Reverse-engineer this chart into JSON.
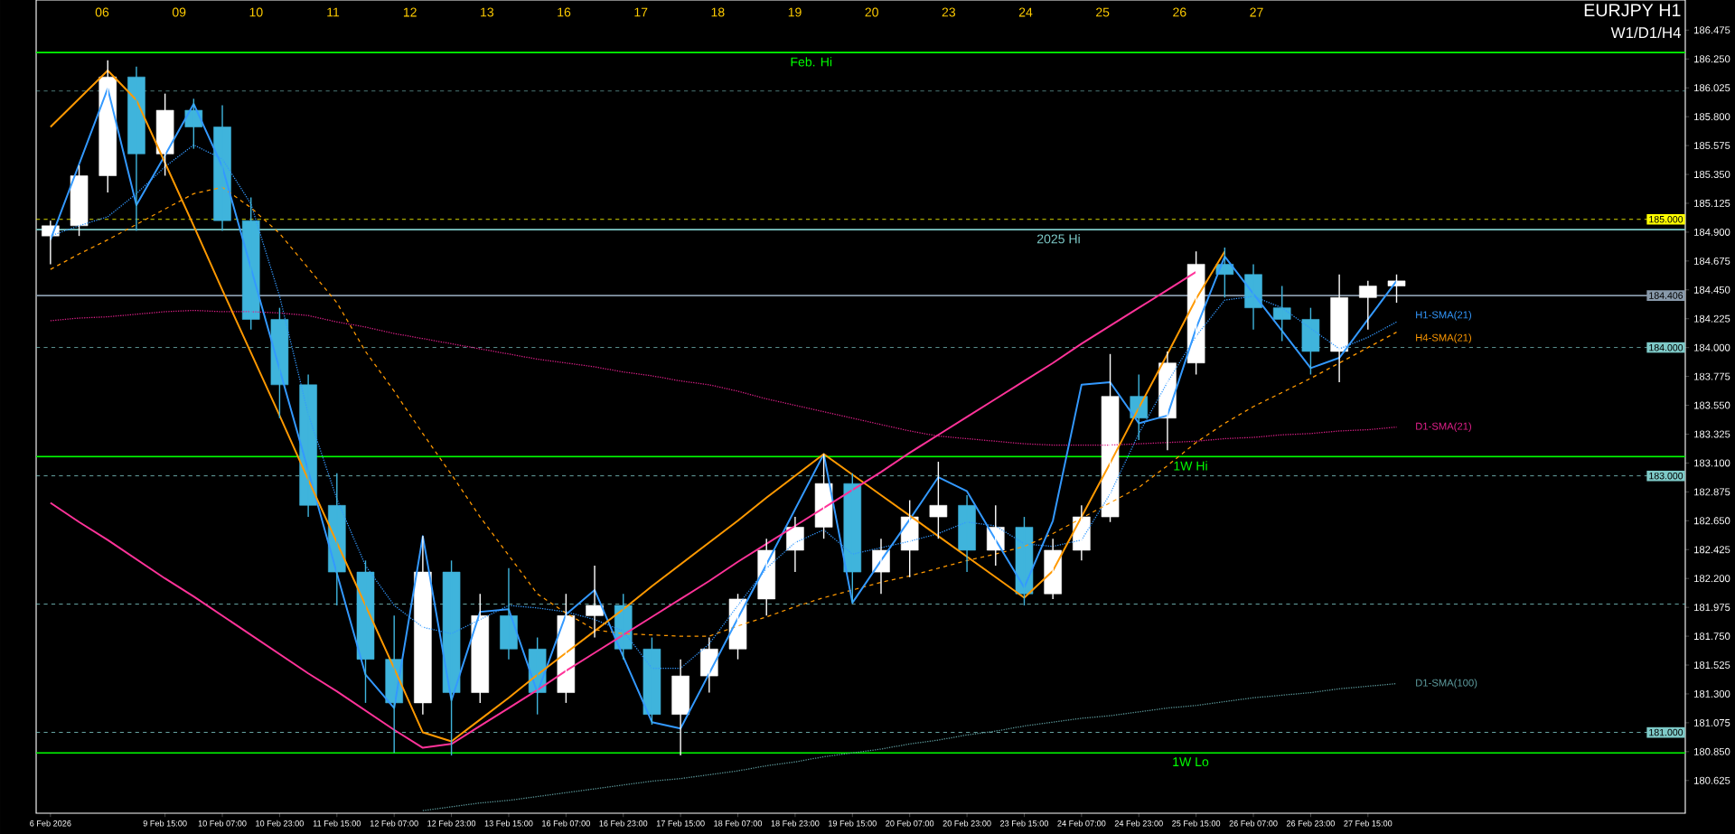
{
  "chart_data": {
    "type": "candlestick",
    "title": "EURJPY H1",
    "subtitle": "W1/D1/H4",
    "categories": [
      "6 Feb 2026",
      null,
      null,
      null,
      "9 Feb 15:00",
      null,
      "10 Feb 07:00",
      null,
      "10 Feb 23:00",
      null,
      "11 Feb 15:00",
      null,
      "12 Feb 07:00",
      null,
      "12 Feb 23:00",
      null,
      "13 Feb 15:00",
      null,
      "16 Feb 07:00",
      null,
      "16 Feb 23:00",
      null,
      "17 Feb 15:00",
      null,
      "18 Feb 07:00",
      null,
      "18 Feb 23:00",
      null,
      "19 Feb 15:00",
      null,
      "20 Feb 07:00",
      null,
      "20 Feb 23:00",
      null,
      "23 Feb 15:00",
      null,
      "24 Feb 07:00",
      null,
      "24 Feb 23:00",
      null,
      "25 Feb 15:00",
      null,
      "26 Feb 07:00",
      null,
      "26 Feb 23:00",
      null,
      "27 Feb 15:00",
      null
    ],
    "ohlc": [
      [
        184.87,
        184.99,
        184.65,
        184.95
      ],
      [
        184.95,
        185.42,
        184.87,
        185.34
      ],
      [
        185.34,
        186.24,
        185.21,
        186.11
      ],
      [
        186.11,
        186.19,
        184.91,
        185.51
      ],
      [
        185.51,
        185.98,
        185.34,
        185.85
      ],
      [
        185.85,
        185.94,
        185.55,
        185.72
      ],
      [
        185.72,
        185.89,
        184.91,
        184.99
      ],
      [
        184.99,
        185.17,
        184.14,
        184.22
      ],
      [
        184.22,
        184.31,
        183.45,
        183.71
      ],
      [
        183.71,
        183.79,
        182.68,
        182.77
      ],
      [
        182.77,
        183.02,
        181.99,
        182.25
      ],
      [
        182.25,
        182.34,
        181.23,
        181.57
      ],
      [
        181.57,
        181.91,
        180.84,
        181.23
      ],
      [
        181.23,
        182.53,
        181.14,
        182.25
      ],
      [
        182.25,
        182.34,
        180.82,
        181.31
      ],
      [
        181.31,
        182.08,
        181.23,
        181.91
      ],
      [
        181.91,
        182.28,
        181.57,
        181.65
      ],
      [
        181.65,
        181.74,
        181.14,
        181.31
      ],
      [
        181.31,
        182.08,
        181.23,
        181.91
      ],
      [
        181.91,
        182.3,
        181.74,
        181.99
      ],
      [
        181.99,
        182.08,
        181.57,
        181.65
      ],
      [
        181.65,
        181.74,
        181.06,
        181.14
      ],
      [
        181.14,
        181.57,
        180.82,
        181.44
      ],
      [
        181.44,
        181.74,
        181.31,
        181.65
      ],
      [
        181.65,
        182.08,
        181.57,
        182.04
      ],
      [
        182.04,
        182.51,
        181.91,
        182.42
      ],
      [
        182.42,
        182.68,
        182.25,
        182.6
      ],
      [
        182.6,
        183.17,
        182.51,
        182.94
      ],
      [
        182.94,
        183.02,
        182.01,
        182.25
      ],
      [
        182.25,
        182.51,
        182.08,
        182.42
      ],
      [
        182.42,
        182.81,
        182.21,
        182.68
      ],
      [
        182.68,
        183.11,
        182.51,
        182.77
      ],
      [
        182.77,
        182.85,
        182.25,
        182.42
      ],
      [
        182.42,
        182.77,
        182.3,
        182.6
      ],
      [
        182.6,
        182.68,
        181.99,
        182.08
      ],
      [
        182.08,
        182.51,
        182.04,
        182.42
      ],
      [
        182.42,
        182.77,
        182.34,
        182.68
      ],
      [
        182.68,
        183.95,
        182.64,
        183.62
      ],
      [
        183.62,
        183.79,
        183.28,
        183.45
      ],
      [
        183.45,
        183.97,
        183.2,
        183.88
      ],
      [
        183.88,
        184.75,
        183.79,
        184.65
      ],
      [
        184.65,
        184.78,
        184.39,
        184.57
      ],
      [
        184.57,
        184.65,
        184.14,
        184.31
      ],
      [
        184.31,
        184.48,
        184.05,
        184.22
      ],
      [
        184.22,
        184.31,
        183.79,
        183.97
      ],
      [
        183.97,
        184.57,
        183.73,
        184.39
      ],
      [
        184.39,
        184.52,
        184.14,
        184.48
      ],
      [
        184.48,
        184.57,
        184.35,
        184.52
      ]
    ],
    "series": [
      {
        "type": "line",
        "name": "H1-SMA(21)",
        "color": "#3399ff",
        "line_style": "dotted",
        "values": [
          184.87,
          184.95,
          185.02,
          185.2,
          185.41,
          185.58,
          185.47,
          185.12,
          184.4,
          183.48,
          182.82,
          182.3,
          181.99,
          181.82,
          181.77,
          181.88,
          181.99,
          181.97,
          181.94,
          181.88,
          181.79,
          181.5,
          181.5,
          181.69,
          181.99,
          182.28,
          182.48,
          182.58,
          182.39,
          182.44,
          182.49,
          182.55,
          182.64,
          182.61,
          182.47,
          182.45,
          182.5,
          182.86,
          183.33,
          183.73,
          184.09,
          184.37,
          184.4,
          184.31,
          184.15,
          183.99,
          184.08,
          184.2
        ]
      },
      {
        "type": "line",
        "name": "H4-SMA(21)",
        "color": "#ff9900",
        "line_style": "dashed",
        "values": [
          184.61,
          184.73,
          184.84,
          184.96,
          185.08,
          185.2,
          185.25,
          185.09,
          184.89,
          184.62,
          184.35,
          183.97,
          183.66,
          183.33,
          183.01,
          182.68,
          182.38,
          182.08,
          181.93,
          181.8,
          181.77,
          181.76,
          181.75,
          181.75,
          181.83,
          181.9,
          181.98,
          182.05,
          182.11,
          182.17,
          182.22,
          182.28,
          182.34,
          182.39,
          182.45,
          182.55,
          182.67,
          182.79,
          182.91,
          183.08,
          183.26,
          183.41,
          183.54,
          183.65,
          183.76,
          183.88,
          184.0,
          184.12
        ]
      },
      {
        "type": "line",
        "name": "D1-SMA(21)",
        "color": "#e0208a",
        "line_style": "dotted",
        "values": [
          184.21,
          184.23,
          184.24,
          184.26,
          184.28,
          184.29,
          184.28,
          184.28,
          184.27,
          184.25,
          184.2,
          184.16,
          184.11,
          184.07,
          184.03,
          183.99,
          183.95,
          183.91,
          183.88,
          183.85,
          183.81,
          183.78,
          183.74,
          183.71,
          183.66,
          183.6,
          183.55,
          183.5,
          183.45,
          183.4,
          183.35,
          183.31,
          183.29,
          183.27,
          183.25,
          183.24,
          183.24,
          183.24,
          183.25,
          183.26,
          183.27,
          183.29,
          183.3,
          183.32,
          183.33,
          183.35,
          183.36,
          183.38
        ]
      },
      {
        "type": "line",
        "name": "D1-SMA(100)",
        "color": "#5f9ea0",
        "line_style": "dotted",
        "values": [
          null,
          null,
          null,
          null,
          null,
          null,
          null,
          null,
          null,
          null,
          null,
          null,
          null,
          180.39,
          180.42,
          180.45,
          180.47,
          180.5,
          180.53,
          180.56,
          180.59,
          180.62,
          180.64,
          180.67,
          180.7,
          180.74,
          180.77,
          180.81,
          180.84,
          180.87,
          180.91,
          180.94,
          180.98,
          181.01,
          181.05,
          181.08,
          181.11,
          181.13,
          181.16,
          181.19,
          181.21,
          181.24,
          181.27,
          181.29,
          181.31,
          181.34,
          181.36,
          181.38
        ]
      },
      {
        "type": "line",
        "color": "#3399ff",
        "line_style": "solid",
        "values": [
          184.84,
          185.43,
          186.02,
          185.11,
          185.5,
          185.9,
          185.41,
          184.62,
          183.83,
          183.04,
          182.24,
          181.45,
          181.19,
          182.53,
          181.25,
          181.94,
          181.96,
          181.31,
          181.92,
          182.11,
          181.59,
          181.08,
          181.03,
          181.46,
          181.89,
          182.31,
          182.74,
          183.17,
          182.01,
          182.34,
          182.66,
          182.99,
          182.88,
          182.5,
          182.13,
          182.65,
          183.71,
          183.73,
          183.41,
          183.47,
          184.15,
          184.71,
          184.42,
          184.13,
          183.84,
          183.92,
          184.22,
          184.52
        ]
      },
      {
        "type": "line",
        "color": "#ff9900",
        "line_style": "solid",
        "values": [
          185.72,
          185.94,
          186.16,
          185.93,
          185.44,
          184.95,
          184.45,
          183.96,
          183.47,
          182.97,
          182.48,
          181.99,
          181.5,
          181.0,
          180.93,
          181.1,
          181.27,
          181.45,
          181.62,
          181.79,
          181.96,
          182.14,
          182.31,
          182.48,
          182.65,
          182.83,
          183.0,
          183.17,
          183.01,
          182.85,
          182.69,
          182.53,
          182.37,
          182.21,
          182.05,
          182.26,
          182.68,
          183.1,
          183.53,
          183.95,
          184.38,
          184.75,
          null,
          null,
          null,
          null,
          null,
          null
        ]
      },
      {
        "type": "line",
        "color": "#ff3399",
        "line_style": "solid",
        "values": [
          182.79,
          182.64,
          182.5,
          182.35,
          182.2,
          182.06,
          181.91,
          181.76,
          181.61,
          181.46,
          181.32,
          181.17,
          181.02,
          180.88,
          180.91,
          181.05,
          181.19,
          181.33,
          181.48,
          181.62,
          181.76,
          181.9,
          182.04,
          182.18,
          182.33,
          182.47,
          182.61,
          182.75,
          182.89,
          183.03,
          183.18,
          183.32,
          183.46,
          183.6,
          183.74,
          183.88,
          184.03,
          184.17,
          184.31,
          184.45,
          184.59,
          null,
          null,
          null,
          null,
          null,
          null,
          null
        ]
      }
    ],
    "ylim": [
      180.37,
      186.71
    ],
    "yticks": [
      {
        "value": 186.475,
        "label": "186.475"
      },
      {
        "value": 186.25,
        "label": "186.250"
      },
      {
        "value": 186.025,
        "label": "186.025"
      },
      {
        "value": 185.8,
        "label": "185.800"
      },
      {
        "value": 185.575,
        "label": "185.575"
      },
      {
        "value": 185.35,
        "label": "185.350"
      },
      {
        "value": 185.125,
        "label": "185.125"
      },
      {
        "value": 184.9,
        "label": "184.900"
      },
      {
        "value": 184.675,
        "label": "184.675"
      },
      {
        "value": 184.45,
        "label": "184.450"
      },
      {
        "value": 184.225,
        "label": "184.225"
      },
      {
        "value": 184.0,
        "label": "184.000"
      },
      {
        "value": 183.775,
        "label": "183.775"
      },
      {
        "value": 183.55,
        "label": "183.550"
      },
      {
        "value": 183.325,
        "label": "183.325"
      },
      {
        "value": 183.1,
        "label": "183.100"
      },
      {
        "value": 182.875,
        "label": "182.875"
      },
      {
        "value": 182.65,
        "label": "182.650"
      },
      {
        "value": 182.425,
        "label": "182.425"
      },
      {
        "value": 182.2,
        "label": "182.200"
      },
      {
        "value": 181.975,
        "label": "181.975"
      },
      {
        "value": 181.75,
        "label": "181.750"
      },
      {
        "value": 181.525,
        "label": "181.525"
      },
      {
        "value": 181.3,
        "label": "181.300"
      },
      {
        "value": 181.075,
        "label": "181.075"
      },
      {
        "value": 180.85,
        "label": "180.850"
      },
      {
        "value": 180.625,
        "label": "180.625"
      }
    ],
    "ref_lines": [
      {
        "axis": "y",
        "value": 186.3,
        "label": "Feb. Hi",
        "color": "#00ff00",
        "line_style": "solid"
      },
      {
        "axis": "y",
        "value": 186.0,
        "color": "#7ecac8",
        "line_style": "dashed"
      },
      {
        "axis": "y",
        "value": 185.0,
        "label": "185.000",
        "color": "#ffff00",
        "line_style": "dashed"
      },
      {
        "axis": "y",
        "value": 184.92,
        "label": "2025 Hi",
        "color": "#7ecac8",
        "line_style": "solid"
      },
      {
        "axis": "y",
        "value": 184.406,
        "label": "184.406",
        "color": "#8899aa",
        "line_style": "solid"
      },
      {
        "axis": "y",
        "value": 184.0,
        "label": "184.000",
        "color": "#7ecac8",
        "line_style": "dashed"
      },
      {
        "axis": "y",
        "value": 183.15,
        "label": "1W Hi",
        "color": "#00ff00",
        "line_style": "solid"
      },
      {
        "axis": "y",
        "value": 183.0,
        "label": "183.000",
        "color": "#7ecac8",
        "line_style": "dashed"
      },
      {
        "axis": "y",
        "value": 182.0,
        "color": "#7ecac8",
        "line_style": "dashed"
      },
      {
        "axis": "y",
        "value": 181.0,
        "label": "181.000",
        "color": "#7ecac8",
        "line_style": "dashed"
      },
      {
        "axis": "y",
        "value": 180.84,
        "label": "1W Lo",
        "color": "#00ff00",
        "line_style": "solid"
      }
    ],
    "annotations": [
      "06",
      "09",
      "10",
      "11",
      "12",
      "13",
      "16",
      "17",
      "18",
      "19",
      "20",
      "23",
      "24",
      "25",
      "26",
      "27"
    ],
    "grid": false
  }
}
